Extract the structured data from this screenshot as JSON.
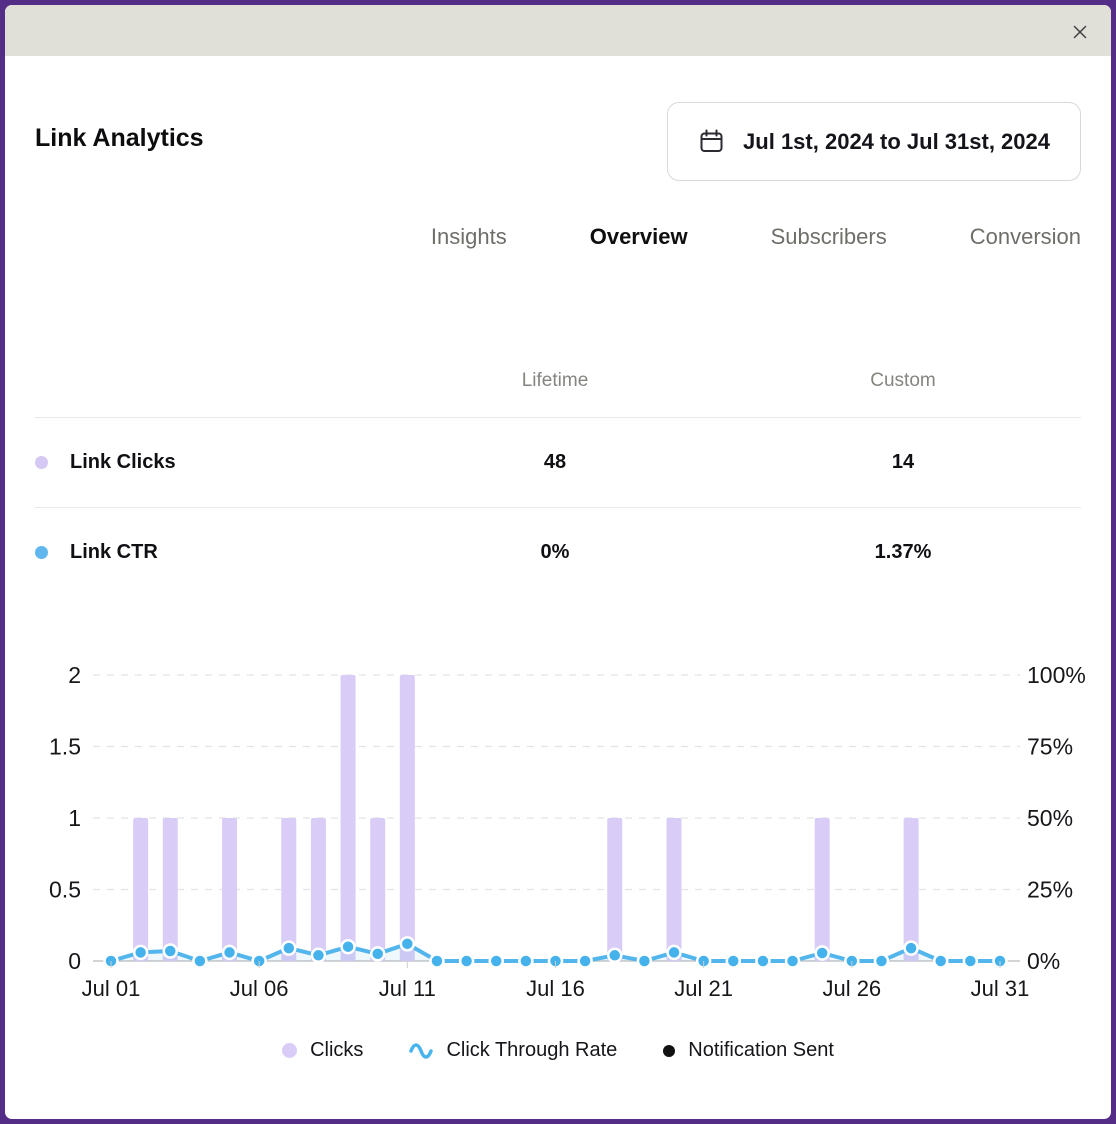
{
  "modal": {
    "title": "Link Analytics",
    "date_range": "Jul 1st, 2024 to Jul 31st, 2024"
  },
  "tabs": [
    {
      "label": "Insights",
      "active": false
    },
    {
      "label": "Overview",
      "active": true
    },
    {
      "label": "Subscribers",
      "active": false
    },
    {
      "label": "Conversion",
      "active": false
    }
  ],
  "stats_table": {
    "columns": [
      "Lifetime",
      "Custom"
    ],
    "rows": [
      {
        "label": "Link Clicks",
        "dot_color": "#d5c8f2",
        "lifetime": "48",
        "custom": "14"
      },
      {
        "label": "Link CTR",
        "dot_color": "#60b7ee",
        "lifetime": "0%",
        "custom": "1.37%"
      }
    ]
  },
  "chart_data": {
    "type": "bar",
    "categories": [
      "Jul 01",
      "Jul 02",
      "Jul 03",
      "Jul 04",
      "Jul 05",
      "Jul 06",
      "Jul 07",
      "Jul 08",
      "Jul 09",
      "Jul 10",
      "Jul 11",
      "Jul 12",
      "Jul 13",
      "Jul 14",
      "Jul 15",
      "Jul 16",
      "Jul 17",
      "Jul 18",
      "Jul 19",
      "Jul 20",
      "Jul 21",
      "Jul 22",
      "Jul 23",
      "Jul 24",
      "Jul 25",
      "Jul 26",
      "Jul 27",
      "Jul 28",
      "Jul 29",
      "Jul 30",
      "Jul 31"
    ],
    "x_tick_labels": [
      "Jul 01",
      "Jul 06",
      "Jul 11",
      "Jul 16",
      "Jul 21",
      "Jul 26",
      "Jul 31"
    ],
    "series": [
      {
        "name": "Clicks",
        "type": "bar",
        "axis": "left",
        "color": "#d9ccf6",
        "values": [
          0,
          1,
          1,
          0,
          1,
          0,
          1,
          1,
          2,
          1,
          2,
          0,
          0,
          0,
          0,
          0,
          0,
          1,
          0,
          1,
          0,
          0,
          0,
          0,
          1,
          0,
          0,
          1,
          0,
          0,
          0
        ]
      },
      {
        "name": "Click Through Rate",
        "type": "line",
        "axis": "right",
        "color": "#52b5ec",
        "dot_color": "#45b2ec",
        "values": [
          0,
          3,
          3.5,
          0,
          3,
          0,
          4.5,
          2,
          5,
          2.5,
          6,
          0,
          0,
          0,
          0,
          0,
          0,
          2,
          0,
          3,
          0,
          0,
          0,
          0,
          2.8,
          0,
          0,
          4.5,
          0,
          0,
          0
        ]
      },
      {
        "name": "Notification Sent",
        "type": "point",
        "axis": "left",
        "color": "#111111",
        "values": []
      }
    ],
    "left_axis": {
      "min": 0,
      "max": 2,
      "tick_values": [
        0,
        0.5,
        1,
        1.5,
        2
      ],
      "tick_labels": [
        "0",
        "0.5",
        "1",
        "1.5",
        "2"
      ]
    },
    "right_axis": {
      "min": 0,
      "max": 100,
      "tick_labels": [
        "0%",
        "25%",
        "50%",
        "75%",
        "100%"
      ]
    },
    "grid": "dashed-horizontal",
    "legend_position": "bottom"
  },
  "legend": [
    {
      "label": "Clicks",
      "marker": "circle",
      "color": "#d9ccf6",
      "size": 15
    },
    {
      "label": "Click Through Rate",
      "marker": "wave",
      "color": "#48b3ed",
      "size": 24
    },
    {
      "label": "Notification Sent",
      "marker": "circle",
      "color": "#111111",
      "size": 12
    }
  ],
  "colors": {
    "frame_purple": "#542e86",
    "header_beige": "#e0dfd8",
    "bar_purple": "#d9ccf6",
    "line_blue": "#52b5ec",
    "gridline": "#e3e3e3",
    "baseline": "#c6c6c6",
    "axis_text": "#17171b"
  }
}
